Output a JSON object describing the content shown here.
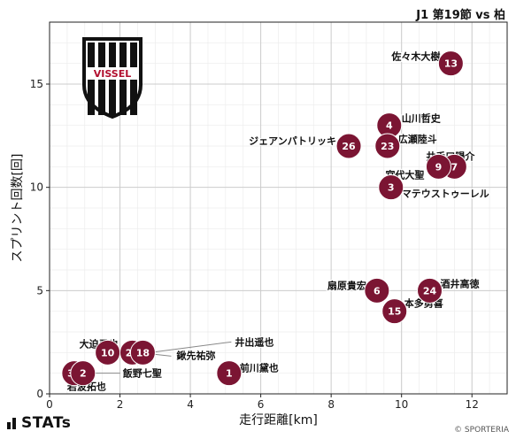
{
  "header": {
    "title": "J1 第19節 vs 柏"
  },
  "footer": {
    "brand": "STATs",
    "credit": "© SPORTERIA"
  },
  "logo": {
    "text": "VISSEL",
    "colors": {
      "red": "#b10f2e",
      "black": "#111111"
    }
  },
  "colors": {
    "point": "#7b1533",
    "point_text": "#ffffff",
    "grid": "#cccccc",
    "leader": "#888888"
  },
  "chart_data": {
    "type": "scatter",
    "title": "",
    "xlabel": "走行距離[km]",
    "ylabel": "スプリント回数[回]",
    "xlim": [
      0,
      13
    ],
    "ylim": [
      0,
      18
    ],
    "xticks": [
      0,
      2,
      4,
      6,
      8,
      10,
      12
    ],
    "yticks": [
      0,
      5,
      10,
      15
    ],
    "grid": true,
    "points": [
      {
        "number": "13",
        "name": "佐々木大樹",
        "x": 11.4,
        "y": 16
      },
      {
        "number": "4",
        "name": "山川哲史",
        "x": 9.65,
        "y": 13
      },
      {
        "number": "23",
        "name": "広瀬陸斗",
        "x": 9.6,
        "y": 12
      },
      {
        "number": "26",
        "name": "ジェアンパトリッキ",
        "x": 8.5,
        "y": 12
      },
      {
        "number": "7",
        "name": "井手口陽介",
        "x": 11.5,
        "y": 11
      },
      {
        "number": "9",
        "name": "宮代大聖",
        "x": 11.05,
        "y": 11
      },
      {
        "number": "3",
        "name": "マテウストゥーレル",
        "x": 9.7,
        "y": 10
      },
      {
        "number": "6",
        "name": "扇原貴宏",
        "x": 9.3,
        "y": 5
      },
      {
        "number": "24",
        "name": "酒井高徳",
        "x": 10.8,
        "y": 5
      },
      {
        "number": "15",
        "name": "本多勇喜",
        "x": 9.8,
        "y": 4
      },
      {
        "number": "10",
        "name": "大迫勇也",
        "x": 1.65,
        "y": 2
      },
      {
        "number": "25",
        "name": "鍬先祐弥",
        "x": 2.35,
        "y": 2
      },
      {
        "number": "18",
        "name": "井出遥也",
        "x": 2.65,
        "y": 2
      },
      {
        "number": "1",
        "name": "前川黛也",
        "x": 5.1,
        "y": 1
      },
      {
        "number": "31",
        "name": "岩波拓也",
        "x": 0.7,
        "y": 1
      },
      {
        "number": "2",
        "name": "飯野七聖",
        "x": 0.95,
        "y": 1
      }
    ]
  }
}
